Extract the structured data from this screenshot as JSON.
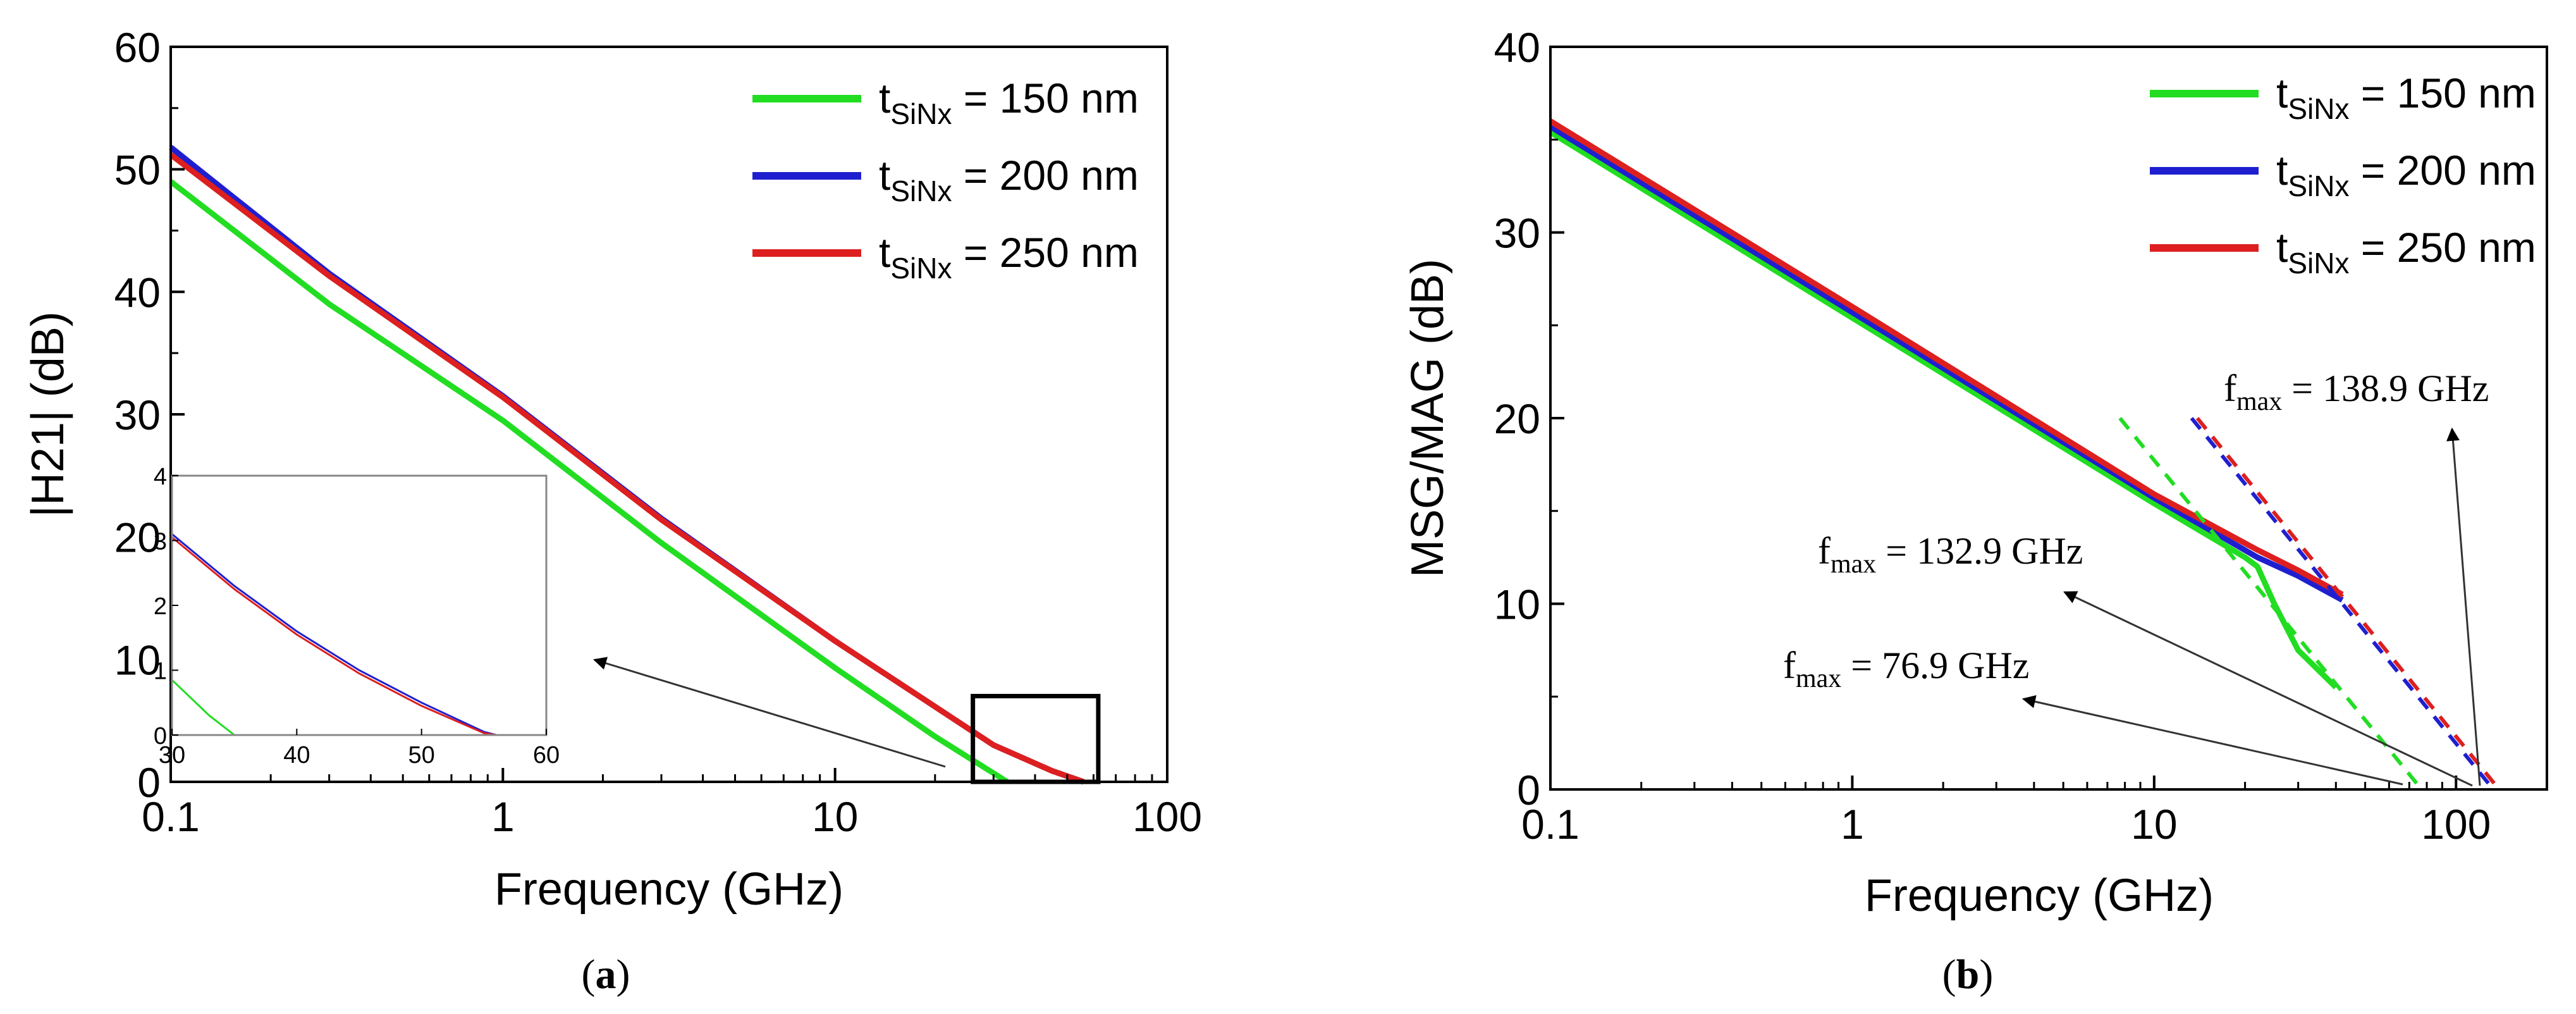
{
  "chart_data": [
    {
      "id": "a",
      "type": "line",
      "caption": "a",
      "xlabel": "Frequency (GHz)",
      "ylabel": "|H21| (dB)",
      "xscale": "log",
      "xlim": [
        0.1,
        100
      ],
      "ylim": [
        0,
        60
      ],
      "xticks": [
        "0.1",
        "1",
        "10",
        "100"
      ],
      "yticks": [
        "0",
        "10",
        "20",
        "30",
        "40",
        "50",
        "60"
      ],
      "legend_position": "top-right",
      "series": [
        {
          "name_main": "t",
          "name_sub": "SiNx",
          "name_rest": " = 150 nm",
          "color": "#22dd22",
          "x": [
            0.1,
            0.3,
            1,
            3,
            10,
            20,
            33
          ],
          "y": [
            49,
            39,
            29.5,
            19.5,
            9.3,
            3.7,
            0
          ]
        },
        {
          "name_main": "t",
          "name_sub": "SiNx",
          "name_rest": " = 200 nm",
          "color": "#1f1fd0",
          "x": [
            0.1,
            0.3,
            1,
            3,
            10,
            30,
            45,
            56
          ],
          "y": [
            51.8,
            41.5,
            31.5,
            21.5,
            11.5,
            3.0,
            0.9,
            0
          ]
        },
        {
          "name_main": "t",
          "name_sub": "SiNx",
          "name_rest": " = 250 nm",
          "color": "#dd1f1f",
          "x": [
            0.1,
            0.3,
            1,
            3,
            10,
            30,
            45,
            56
          ],
          "y": [
            51.2,
            41.3,
            31.4,
            21.4,
            11.5,
            3.0,
            0.9,
            0
          ]
        }
      ],
      "zoom_box": {
        "xlim": [
          26,
          62
        ],
        "ylim": [
          0,
          7
        ]
      },
      "inset": {
        "xlim": [
          30,
          60
        ],
        "ylim": [
          0,
          4
        ],
        "xticks": [
          "30",
          "40",
          "50",
          "60"
        ],
        "yticks": [
          "0",
          "1",
          "2",
          "3",
          "4"
        ],
        "series": [
          {
            "color": "#22dd22",
            "x": [
              30,
              33,
              35
            ],
            "y": [
              0.85,
              0.3,
              0
            ]
          },
          {
            "color": "#1f1fd0",
            "x": [
              30,
              35,
              40,
              45,
              50,
              55,
              56
            ],
            "y": [
              3.1,
              2.3,
              1.6,
              1.0,
              0.5,
              0.05,
              0
            ]
          },
          {
            "color": "#dd1f1f",
            "x": [
              30,
              35,
              40,
              45,
              50,
              55,
              56
            ],
            "y": [
              3.05,
              2.25,
              1.55,
              0.95,
              0.45,
              0.03,
              0
            ]
          }
        ]
      }
    },
    {
      "id": "b",
      "type": "line",
      "caption": "b",
      "xlabel": "Frequency (GHz)",
      "ylabel": "MSG/MAG (dB)",
      "xscale": "log",
      "xlim": [
        0.1,
        200
      ],
      "ylim": [
        0,
        40
      ],
      "xticks": [
        "0.1",
        "1",
        "10",
        "100"
      ],
      "yticks": [
        "0",
        "10",
        "20",
        "30",
        "40"
      ],
      "legend_position": "top-right",
      "series": [
        {
          "name_main": "t",
          "name_sub": "SiNx",
          "name_rest": " = 150 nm",
          "color": "#22dd22",
          "x": [
            0.1,
            1,
            10,
            20,
            22,
            25,
            30,
            40
          ],
          "y": [
            35.4,
            25.4,
            15.4,
            12.5,
            12,
            10,
            7.5,
            5.5
          ]
        },
        {
          "name_main": "t",
          "name_sub": "SiNx",
          "name_rest": " = 200 nm",
          "color": "#1f1fd0",
          "x": [
            0.1,
            1,
            10,
            22,
            30,
            42
          ],
          "y": [
            35.7,
            25.7,
            15.7,
            12.5,
            11.5,
            10.2
          ]
        },
        {
          "name_main": "t",
          "name_sub": "SiNx",
          "name_rest": " = 250 nm",
          "color": "#dd1f1f",
          "x": [
            0.1,
            1,
            10,
            22,
            30,
            42
          ],
          "y": [
            36,
            26,
            15.9,
            12.9,
            11.8,
            10.5
          ]
        }
      ],
      "extrapolations": [
        {
          "color": "#22dd22",
          "x": [
            7.7,
            76.9
          ],
          "y": [
            20,
            0
          ]
        },
        {
          "color": "#1f1fd0",
          "x": [
            13.3,
            132.9
          ],
          "y": [
            20,
            0
          ]
        },
        {
          "color": "#dd1f1f",
          "x": [
            13.9,
            138.9
          ],
          "y": [
            20,
            0
          ]
        }
      ],
      "annotations": [
        {
          "main": "f",
          "sub": "max",
          "rest": " = 138.9 GHz",
          "value": 138.9
        },
        {
          "main": "f",
          "sub": "max",
          "rest": " = 132.9 GHz",
          "value": 132.9
        },
        {
          "main": "f",
          "sub": "max",
          "rest": " = 76.9 GHz",
          "value": 76.9
        }
      ]
    }
  ]
}
